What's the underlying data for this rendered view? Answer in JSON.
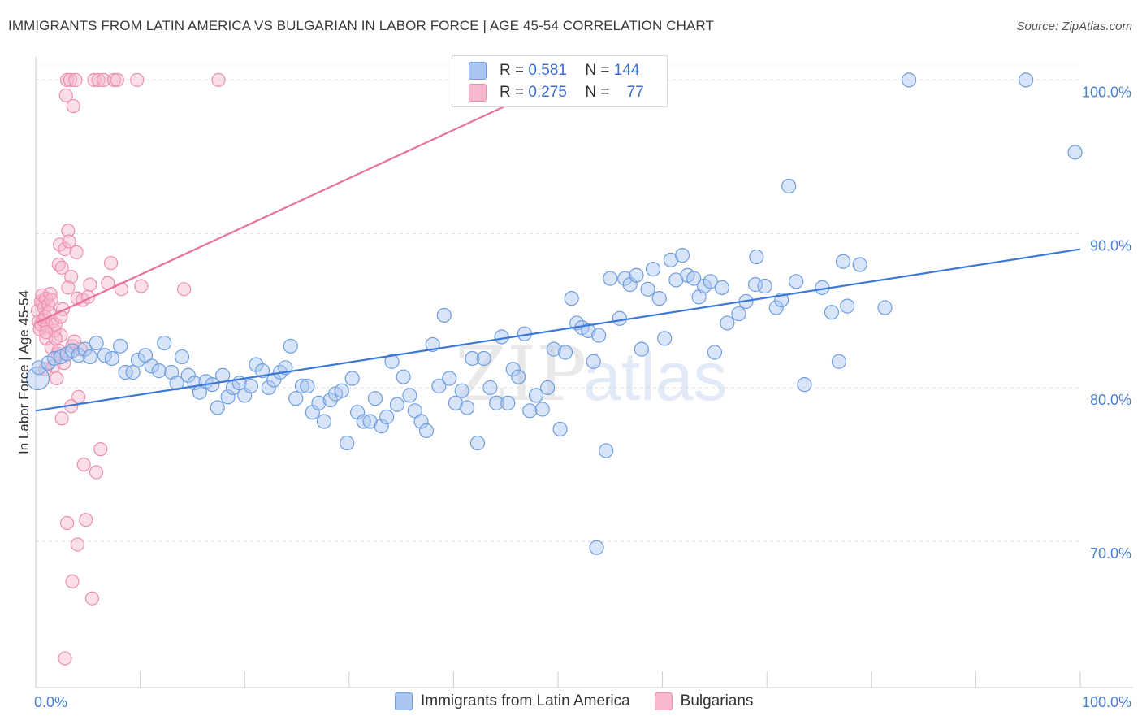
{
  "header": {
    "title": "IMMIGRANTS FROM LATIN AMERICA VS BULGARIAN IN LABOR FORCE | AGE 45-54 CORRELATION CHART",
    "source": "Source: ZipAtlas.com"
  },
  "legend": {
    "row1": {
      "r_label": "R =",
      "r_value": "0.581",
      "n_label": "N =",
      "n_value": "144"
    },
    "row2": {
      "r_label": "R =",
      "r_value": "0.275",
      "n_label": "N =",
      "n_value": "77"
    }
  },
  "bottom_legend": {
    "series1": "Immigrants from Latin America",
    "series2": "Bulgarians"
  },
  "watermark": {
    "part1": "ZIP",
    "part2": "atlas"
  },
  "colors": {
    "blue_fill": "#a9c6f0",
    "blue_stroke": "#6f9de0",
    "blue_line": "#3b78d8",
    "pink_fill": "#f6b8cb",
    "pink_stroke": "#ec8fae",
    "pink_line": "#e8739a",
    "grid": "#dddddd",
    "tick_text": "#4a7fd0"
  },
  "chart_data": {
    "type": "scatter",
    "title": "IMMIGRANTS FROM LATIN AMERICA VS BULGARIAN IN LABOR FORCE | AGE 45-54 CORRELATION CHART",
    "xlabel": "",
    "ylabel": "In Labor Force | Age 45-54",
    "xlim": [
      0,
      100
    ],
    "ylim": [
      60.5,
      101.5
    ],
    "x_tick_labels": [
      "0.0%",
      "100.0%"
    ],
    "y_ticks": [
      70,
      80,
      90,
      100
    ],
    "y_tick_labels": [
      "70.0%",
      "80.0%",
      "90.0%",
      "100.0%"
    ],
    "series": [
      {
        "name": "Immigrants from Latin America",
        "color": "#a9c6f0",
        "trend": {
          "x0": 0,
          "y0": 78.5,
          "x1": 100,
          "y1": 89.0
        },
        "points": [
          [
            0.3,
            81.3
          ],
          [
            1.2,
            81.6
          ],
          [
            1.8,
            81.9
          ],
          [
            2.4,
            82.0
          ],
          [
            3.0,
            82.2
          ],
          [
            3.5,
            82.4
          ],
          [
            4.1,
            82.1
          ],
          [
            4.7,
            82.5
          ],
          [
            5.2,
            82.0
          ],
          [
            5.8,
            82.9
          ],
          [
            6.6,
            82.1
          ],
          [
            7.3,
            81.9
          ],
          [
            8.1,
            82.7
          ],
          [
            8.6,
            81.0
          ],
          [
            9.3,
            81.0
          ],
          [
            9.8,
            81.8
          ],
          [
            10.5,
            82.1
          ],
          [
            11.1,
            81.4
          ],
          [
            11.8,
            81.1
          ],
          [
            12.3,
            82.9
          ],
          [
            13.0,
            81.0
          ],
          [
            13.5,
            80.3
          ],
          [
            14.0,
            82.0
          ],
          [
            14.6,
            80.8
          ],
          [
            15.2,
            80.3
          ],
          [
            15.7,
            79.7
          ],
          [
            16.3,
            80.4
          ],
          [
            16.9,
            80.2
          ],
          [
            17.4,
            78.7
          ],
          [
            17.9,
            80.8
          ],
          [
            18.4,
            79.4
          ],
          [
            18.9,
            80.0
          ],
          [
            19.5,
            80.3
          ],
          [
            20.0,
            79.5
          ],
          [
            20.6,
            80.1
          ],
          [
            21.1,
            81.5
          ],
          [
            21.7,
            81.1
          ],
          [
            22.3,
            80.0
          ],
          [
            22.8,
            80.5
          ],
          [
            23.4,
            81.0
          ],
          [
            23.9,
            81.3
          ],
          [
            24.4,
            82.7
          ],
          [
            24.9,
            79.3
          ],
          [
            25.5,
            80.1
          ],
          [
            26.0,
            80.1
          ],
          [
            26.5,
            78.4
          ],
          [
            27.1,
            79.0
          ],
          [
            27.6,
            77.8
          ],
          [
            28.2,
            79.2
          ],
          [
            28.7,
            79.6
          ],
          [
            29.3,
            79.8
          ],
          [
            29.8,
            76.4
          ],
          [
            30.3,
            80.6
          ],
          [
            30.8,
            78.4
          ],
          [
            31.4,
            77.8
          ],
          [
            32.0,
            77.8
          ],
          [
            32.5,
            79.3
          ],
          [
            33.1,
            77.5
          ],
          [
            33.6,
            78.1
          ],
          [
            34.1,
            81.7
          ],
          [
            34.6,
            78.9
          ],
          [
            35.2,
            80.7
          ],
          [
            35.8,
            79.5
          ],
          [
            36.3,
            78.5
          ],
          [
            36.9,
            77.8
          ],
          [
            37.4,
            77.2
          ],
          [
            38.0,
            82.8
          ],
          [
            38.6,
            80.1
          ],
          [
            39.1,
            84.7
          ],
          [
            39.6,
            80.6
          ],
          [
            40.2,
            79.0
          ],
          [
            40.8,
            79.8
          ],
          [
            41.3,
            78.7
          ],
          [
            41.8,
            81.9
          ],
          [
            42.3,
            76.4
          ],
          [
            42.9,
            81.9
          ],
          [
            43.5,
            80.0
          ],
          [
            44.1,
            79.0
          ],
          [
            44.6,
            83.3
          ],
          [
            45.2,
            79.0
          ],
          [
            45.7,
            81.2
          ],
          [
            46.2,
            80.7
          ],
          [
            46.8,
            83.5
          ],
          [
            47.3,
            78.5
          ],
          [
            47.9,
            79.5
          ],
          [
            48.5,
            78.6
          ],
          [
            49.0,
            80.0
          ],
          [
            49.6,
            82.5
          ],
          [
            50.2,
            77.3
          ],
          [
            50.7,
            82.3
          ],
          [
            51.3,
            85.8
          ],
          [
            51.8,
            84.2
          ],
          [
            52.3,
            83.9
          ],
          [
            52.9,
            83.7
          ],
          [
            53.4,
            81.7
          ],
          [
            53.9,
            83.4
          ],
          [
            54.6,
            75.9
          ],
          [
            55.0,
            87.1
          ],
          [
            55.9,
            84.5
          ],
          [
            56.4,
            87.1
          ],
          [
            56.9,
            86.7
          ],
          [
            57.5,
            87.3
          ],
          [
            58.0,
            82.5
          ],
          [
            58.6,
            86.4
          ],
          [
            59.1,
            87.7
          ],
          [
            59.7,
            85.8
          ],
          [
            60.2,
            83.2
          ],
          [
            60.8,
            88.3
          ],
          [
            61.3,
            87.0
          ],
          [
            61.9,
            88.6
          ],
          [
            62.4,
            87.3
          ],
          [
            63.0,
            87.1
          ],
          [
            63.5,
            85.9
          ],
          [
            64.0,
            86.6
          ],
          [
            64.6,
            86.9
          ],
          [
            65.0,
            82.3
          ],
          [
            65.7,
            86.5
          ],
          [
            66.2,
            84.2
          ],
          [
            67.3,
            84.8
          ],
          [
            68.0,
            85.6
          ],
          [
            68.9,
            86.7
          ],
          [
            69.0,
            88.5
          ],
          [
            69.8,
            86.6
          ],
          [
            70.9,
            85.2
          ],
          [
            71.4,
            85.7
          ],
          [
            72.1,
            93.1
          ],
          [
            72.8,
            86.9
          ],
          [
            73.6,
            80.2
          ],
          [
            75.3,
            86.5
          ],
          [
            76.2,
            84.9
          ],
          [
            76.9,
            81.7
          ],
          [
            77.3,
            88.2
          ],
          [
            77.7,
            85.3
          ],
          [
            78.9,
            88.0
          ],
          [
            81.3,
            85.2
          ],
          [
            83.6,
            100.0
          ],
          [
            94.8,
            100.0
          ],
          [
            99.5,
            95.3
          ],
          [
            53.7,
            69.6
          ]
        ]
      },
      {
        "name": "Bulgarians",
        "color": "#f6b8cb",
        "trend": {
          "x0": 0,
          "y0": 84.2,
          "x1": 51,
          "y1": 100.2
        },
        "points": [
          [
            0.2,
            85.0
          ],
          [
            0.3,
            84.3
          ],
          [
            0.4,
            83.8
          ],
          [
            0.5,
            85.6
          ],
          [
            0.5,
            84.1
          ],
          [
            0.6,
            86.0
          ],
          [
            0.7,
            85.5
          ],
          [
            0.7,
            84.4
          ],
          [
            0.8,
            85.2
          ],
          [
            0.9,
            84.6
          ],
          [
            1.0,
            85.8
          ],
          [
            1.0,
            83.2
          ],
          [
            1.1,
            84.0
          ],
          [
            1.2,
            85.4
          ],
          [
            1.3,
            84.9
          ],
          [
            1.4,
            86.1
          ],
          [
            1.5,
            82.6
          ],
          [
            1.5,
            85.7
          ],
          [
            1.6,
            84.3
          ],
          [
            1.7,
            81.4
          ],
          [
            1.8,
            83.7
          ],
          [
            1.9,
            84.1
          ],
          [
            2.0,
            80.6
          ],
          [
            2.1,
            82.2
          ],
          [
            2.2,
            88.0
          ],
          [
            2.3,
            89.3
          ],
          [
            2.4,
            83.4
          ],
          [
            2.5,
            87.8
          ],
          [
            2.6,
            85.1
          ],
          [
            2.7,
            81.6
          ],
          [
            2.8,
            89.0
          ],
          [
            2.9,
            99.0
          ],
          [
            3.0,
            100.0
          ],
          [
            3.1,
            90.2
          ],
          [
            3.2,
            89.5
          ],
          [
            3.3,
            100.0
          ],
          [
            3.4,
            87.2
          ],
          [
            3.5,
            82.7
          ],
          [
            3.6,
            98.3
          ],
          [
            3.8,
            100.0
          ],
          [
            3.9,
            88.8
          ],
          [
            4.0,
            85.8
          ],
          [
            4.1,
            79.4
          ],
          [
            4.3,
            82.5
          ],
          [
            4.5,
            85.7
          ],
          [
            4.6,
            75.0
          ],
          [
            4.8,
            71.4
          ],
          [
            5.0,
            85.9
          ],
          [
            5.2,
            86.7
          ],
          [
            5.4,
            66.3
          ],
          [
            5.6,
            100.0
          ],
          [
            5.8,
            74.5
          ],
          [
            6.0,
            100.0
          ],
          [
            6.2,
            76.0
          ],
          [
            6.5,
            100.0
          ],
          [
            6.9,
            86.8
          ],
          [
            7.2,
            88.1
          ],
          [
            7.5,
            100.0
          ],
          [
            7.8,
            100.0
          ],
          [
            8.2,
            86.4
          ],
          [
            9.7,
            100.0
          ],
          [
            10.1,
            86.6
          ],
          [
            14.2,
            86.4
          ],
          [
            17.5,
            100.0
          ],
          [
            2.5,
            78.0
          ],
          [
            3.0,
            71.2
          ],
          [
            3.5,
            67.4
          ],
          [
            4.0,
            69.8
          ],
          [
            2.8,
            62.4
          ],
          [
            3.4,
            78.8
          ],
          [
            3.7,
            83.0
          ],
          [
            1.9,
            83.2
          ],
          [
            2.4,
            84.6
          ],
          [
            1.0,
            83.6
          ],
          [
            0.9,
            81.2
          ],
          [
            2.2,
            82.4
          ],
          [
            3.1,
            86.5
          ]
        ]
      }
    ]
  }
}
